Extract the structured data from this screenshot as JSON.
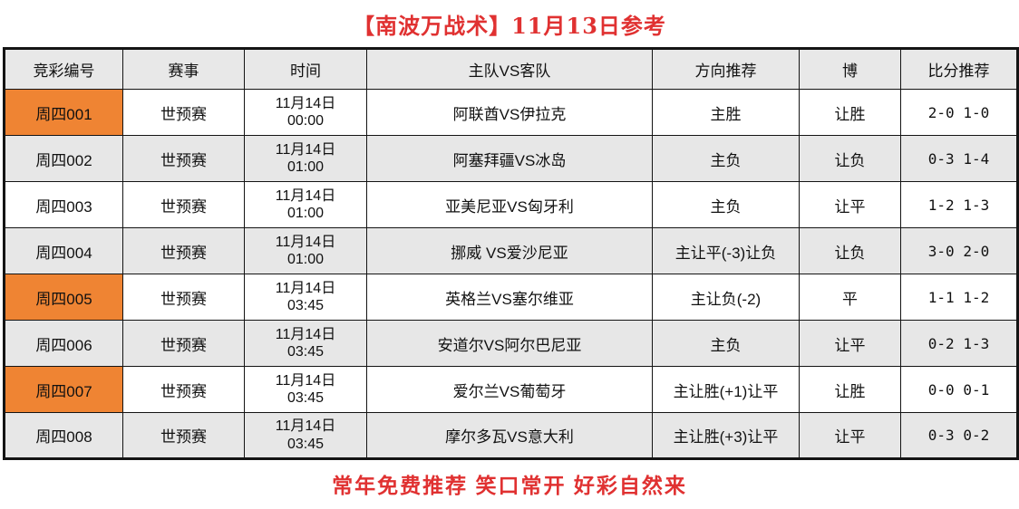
{
  "title": "【南波万战术】11月13日参考",
  "footer": "常年免费推荐 笑口常开 好彩自然来",
  "colors": {
    "highlight_orange": "#ef8433",
    "row_gray": "#e7e7e7",
    "header_gray": "#e8e8e8",
    "text_red": "#e03131",
    "border_black": "#141414"
  },
  "table": {
    "headers": [
      "竞彩编号",
      "赛事",
      "时间",
      "主队VS客队",
      "方向推荐",
      "博",
      "比分推荐"
    ],
    "rows": [
      {
        "id": "周四001",
        "league": "世预赛",
        "date": "11月14日",
        "time": "00:00",
        "match": "阿联酋VS伊拉克",
        "direction": "主胜",
        "bet": "让胜",
        "score": "2-0 1-0"
      },
      {
        "id": "周四002",
        "league": "世预赛",
        "date": "11月14日",
        "time": "01:00",
        "match": "阿塞拜疆VS冰岛",
        "direction": "主负",
        "bet": "让负",
        "score": "0-3 1-4"
      },
      {
        "id": "周四003",
        "league": "世预赛",
        "date": "11月14日",
        "time": "01:00",
        "match": "亚美尼亚VS匈牙利",
        "direction": "主负",
        "bet": "让平",
        "score": "1-2 1-3"
      },
      {
        "id": "周四004",
        "league": "世预赛",
        "date": "11月14日",
        "time": "01:00",
        "match": "挪威 VS爱沙尼亚",
        "direction": "主让平(-3)让负",
        "bet": "让负",
        "score": "3-0 2-0"
      },
      {
        "id": "周四005",
        "league": "世预赛",
        "date": "11月14日",
        "time": "03:45",
        "match": "英格兰VS塞尔维亚",
        "direction": "主让负(-2)",
        "bet": "平",
        "score": "1-1 1-2"
      },
      {
        "id": "周四006",
        "league": "世预赛",
        "date": "11月14日",
        "time": "03:45",
        "match": "安道尔VS阿尔巴尼亚",
        "direction": "主负",
        "bet": "让平",
        "score": "0-2 1-3"
      },
      {
        "id": "周四007",
        "league": "世预赛",
        "date": "11月14日",
        "time": "03:45",
        "match": "爱尔兰VS葡萄牙",
        "direction": "主让胜(+1)让平",
        "bet": "让胜",
        "score": "0-0 0-1"
      },
      {
        "id": "周四008",
        "league": "世预赛",
        "date": "11月14日",
        "time": "03:45",
        "match": "摩尔多瓦VS意大利",
        "direction": "主让胜(+3)让平",
        "bet": "让平",
        "score": "0-3 0-2"
      }
    ]
  }
}
